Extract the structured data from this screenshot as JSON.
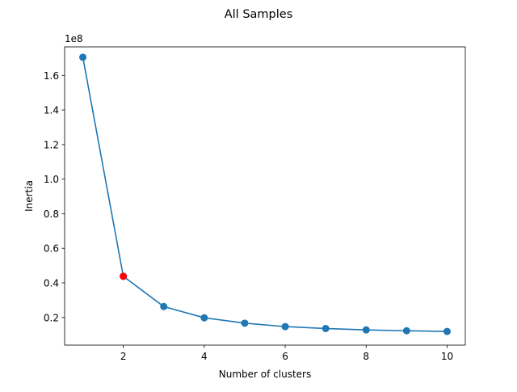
{
  "chart_data": {
    "type": "line",
    "title": "All Samples",
    "xlabel": "Number of clusters",
    "ylabel": "Inertia",
    "y_offset_label": "1e8",
    "x": [
      1,
      2,
      3,
      4,
      5,
      6,
      7,
      8,
      9,
      10
    ],
    "series": [
      {
        "values": [
          170500000,
          43800000,
          26300000,
          19800000,
          16700000,
          14700000,
          13600000,
          12800000,
          12300000,
          11900000
        ],
        "color": "#1f77b4"
      }
    ],
    "highlight": {
      "x": 2,
      "y": 43800000,
      "color": "#ff0000"
    },
    "xlim": [
      0.55,
      10.45
    ],
    "ylim": [
      0.04,
      1.765
    ],
    "y_scale_factor": 100000000,
    "x_ticks": [
      2,
      4,
      6,
      8,
      10
    ],
    "x_tick_labels": [
      "2",
      "4",
      "6",
      "8",
      "10"
    ],
    "y_ticks": [
      0.2,
      0.4,
      0.6,
      0.8,
      1.0,
      1.2,
      1.4,
      1.6
    ],
    "y_tick_labels": [
      "0.2",
      "0.4",
      "0.6",
      "0.8",
      "1.0",
      "1.2",
      "1.4",
      "1.6"
    ],
    "grid": false,
    "legend": "none"
  }
}
